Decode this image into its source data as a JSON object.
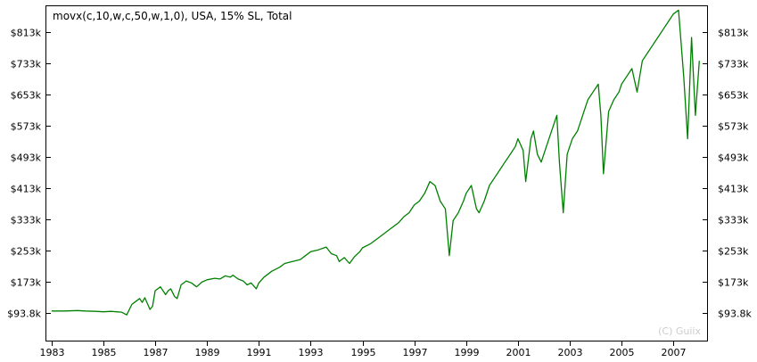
{
  "chart_data": {
    "type": "line",
    "title": "movx(c,10,w,c,50,w,1,0), USA, 15% SL, Total",
    "watermark": "(C) Guiix",
    "xlabel": "",
    "ylabel": "",
    "x_tick_labels": [
      "1983",
      "1985",
      "1987",
      "1989",
      "1991",
      "1993",
      "1995",
      "1997",
      "1999",
      "2001",
      "2003",
      "2005",
      "2007"
    ],
    "x_tick_values": [
      1983,
      1985,
      1987,
      1989,
      1991,
      1993,
      1995,
      1997,
      1999,
      2001,
      2003,
      2005,
      2007
    ],
    "y_tick_labels": [
      "$93.8k",
      "$173k",
      "$253k",
      "$333k",
      "$413k",
      "$493k",
      "$573k",
      "$653k",
      "$733k",
      "$813k"
    ],
    "y_tick_values": [
      93.8,
      173,
      253,
      333,
      413,
      493,
      573,
      653,
      733,
      813
    ],
    "y_axis_both_sides": true,
    "xlim": [
      1982.8,
      2008.3
    ],
    "ylim": [
      22,
      880
    ],
    "grid": false,
    "series": [
      {
        "color": "#008000",
        "x": [
          1983.0,
          1983.5,
          1984.0,
          1984.3,
          1984.7,
          1985.0,
          1985.3,
          1985.5,
          1985.7,
          1985.9,
          1986.1,
          1986.2,
          1986.4,
          1986.5,
          1986.6,
          1986.8,
          1986.9,
          1987.0,
          1987.2,
          1987.4,
          1987.5,
          1987.6,
          1987.75,
          1987.85,
          1988.0,
          1988.2,
          1988.4,
          1988.6,
          1988.8,
          1989.0,
          1989.3,
          1989.5,
          1989.7,
          1989.9,
          1990.0,
          1990.2,
          1990.4,
          1990.55,
          1990.7,
          1990.9,
          1991.0,
          1991.2,
          1991.5,
          1991.8,
          1992.0,
          1992.3,
          1992.6,
          1992.8,
          1993.0,
          1993.3,
          1993.6,
          1993.8,
          1994.0,
          1994.1,
          1994.3,
          1994.5,
          1994.7,
          1994.9,
          1995.0,
          1995.3,
          1995.6,
          1995.9,
          1996.1,
          1996.4,
          1996.6,
          1996.8,
          1997.0,
          1997.2,
          1997.4,
          1997.6,
          1997.8,
          1998.0,
          1998.2,
          1998.35,
          1998.5,
          1998.7,
          1998.9,
          1999.0,
          1999.2,
          1999.4,
          1999.5,
          1999.7,
          1999.9,
          2000.1,
          2000.3,
          2000.5,
          2000.7,
          2000.9,
          2001.0,
          2001.2,
          2001.3,
          2001.5,
          2001.6,
          2001.75,
          2001.9,
          2002.1,
          2002.3,
          2002.5,
          2002.6,
          2002.75,
          2002.9,
          2003.1,
          2003.3,
          2003.5,
          2003.7,
          2003.9,
          2004.1,
          2004.2,
          2004.3,
          2004.5,
          2004.7,
          2004.9,
          2005.0,
          2005.2,
          2005.4,
          2005.5,
          2005.6,
          2005.8,
          2006.0,
          2006.2,
          2006.4,
          2006.6,
          2006.8,
          2007.0,
          2007.2,
          2007.4,
          2007.55,
          2007.7,
          2007.85,
          2008.0
        ],
        "y": [
          98,
          98,
          99,
          98,
          97,
          96,
          97,
          96,
          95,
          88,
          115,
          120,
          130,
          120,
          132,
          102,
          110,
          150,
          160,
          140,
          150,
          155,
          135,
          130,
          165,
          175,
          170,
          160,
          172,
          178,
          182,
          180,
          188,
          185,
          190,
          180,
          175,
          165,
          170,
          155,
          170,
          185,
          200,
          210,
          220,
          225,
          230,
          240,
          250,
          255,
          262,
          245,
          240,
          225,
          235,
          220,
          238,
          250,
          260,
          270,
          285,
          300,
          310,
          325,
          340,
          350,
          370,
          380,
          400,
          430,
          420,
          380,
          360,
          240,
          330,
          350,
          380,
          400,
          420,
          360,
          350,
          380,
          420,
          440,
          460,
          480,
          500,
          520,
          540,
          510,
          430,
          540,
          560,
          500,
          480,
          520,
          560,
          600,
          480,
          350,
          500,
          540,
          560,
          600,
          640,
          660,
          680,
          600,
          450,
          610,
          640,
          660,
          680,
          700,
          720,
          690,
          660,
          740,
          760,
          780,
          800,
          820,
          840,
          860,
          870,
          700,
          540,
          800,
          600,
          740
        ]
      }
    ]
  }
}
